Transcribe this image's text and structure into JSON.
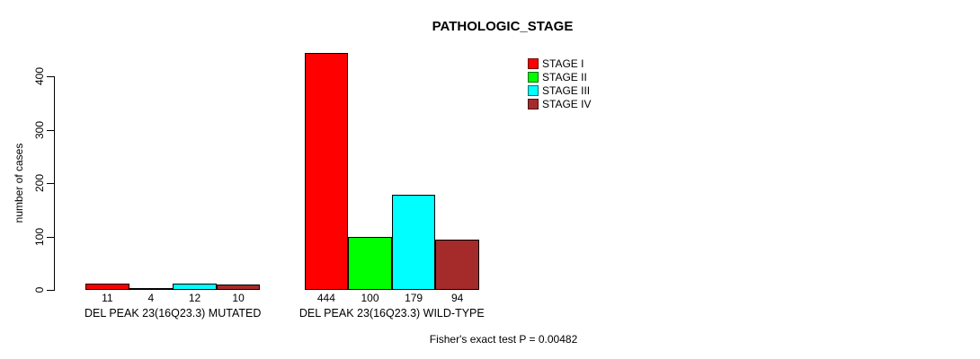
{
  "title": "PATHOLOGIC_STAGE",
  "footer": "Fisher's exact test P = 0.00482",
  "chart_data": {
    "type": "bar",
    "title": "PATHOLOGIC_STAGE",
    "xlabel": "",
    "ylabel": "number of cases",
    "ylim": [
      0,
      450
    ],
    "yticks": [
      0,
      100,
      200,
      300,
      400
    ],
    "grid": false,
    "legend_position": "top-right",
    "categories": [
      "DEL PEAK 23(16Q23.3) MUTATED",
      "DEL PEAK 23(16Q23.3) WILD-TYPE"
    ],
    "series": [
      {
        "name": "STAGE I",
        "color": "#FF0000",
        "values": [
          11,
          444
        ]
      },
      {
        "name": "STAGE II",
        "color": "#00FF00",
        "values": [
          4,
          100
        ]
      },
      {
        "name": "STAGE III",
        "color": "#00FFFF",
        "values": [
          12,
          179
        ]
      },
      {
        "name": "STAGE IV",
        "color": "#A52A2A",
        "values": [
          10,
          94
        ]
      }
    ],
    "bar_value_labels": {
      "DEL PEAK 23(16Q23.3) MUTATED": [
        11,
        4,
        12,
        10
      ],
      "DEL PEAK 23(16Q23.3) WILD-TYPE": [
        444,
        100,
        179,
        94
      ]
    },
    "annotation": "Fisher's exact test P = 0.00482"
  }
}
